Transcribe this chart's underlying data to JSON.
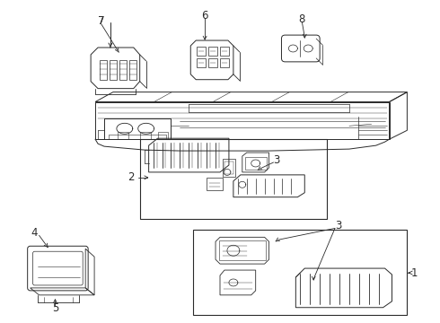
{
  "bg_color": "#ffffff",
  "line_color": "#2a2a2a",
  "label_fontsize": 8.5,
  "fig_w": 4.9,
  "fig_h": 3.6,
  "dpi": 100
}
